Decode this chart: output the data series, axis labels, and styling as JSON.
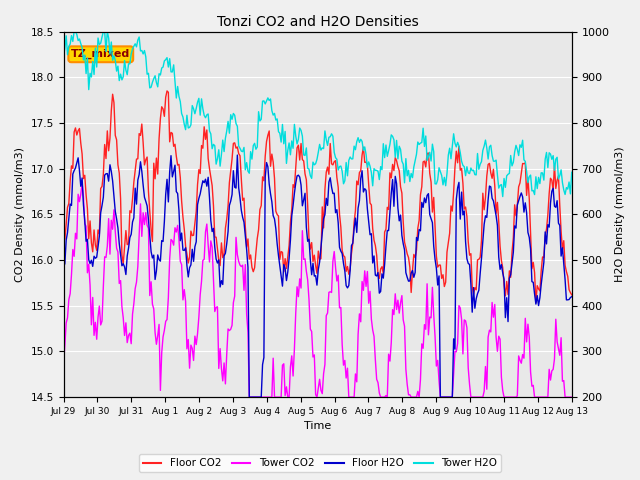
{
  "title": "Tonzi CO2 and H2O Densities",
  "xlabel": "Time",
  "ylabel_left": "CO2 Density (mmol/m3)",
  "ylabel_right": "H2O Density (mmol/m3)",
  "ylim_left": [
    14.5,
    18.5
  ],
  "ylim_right": [
    200,
    1000
  ],
  "annotation_text": "TZ_mixed",
  "annotation_color": "#8B0000",
  "annotation_bg": "#FFD700",
  "annotation_border": "#FF8C00",
  "colors": {
    "floor_co2": "#FF2222",
    "tower_co2": "#FF00FF",
    "floor_h2o": "#0000CC",
    "tower_h2o": "#00DDDD"
  },
  "legend_labels": [
    "Floor CO2",
    "Tower CO2",
    "Floor H2O",
    "Tower H2O"
  ],
  "xtick_labels": [
    "Jul 29",
    "Jul 30",
    "Jul 31",
    "Aug 1",
    "Aug 2",
    "Aug 3",
    "Aug 4",
    "Aug 5",
    "Aug 6",
    "Aug 7",
    "Aug 8",
    "Aug 9",
    "Aug 10",
    "Aug 11",
    "Aug 12",
    "Aug 13"
  ],
  "background_color": "#e8e8e8",
  "grid_color": "#ffffff",
  "fig_bg": "#f0f0f0"
}
